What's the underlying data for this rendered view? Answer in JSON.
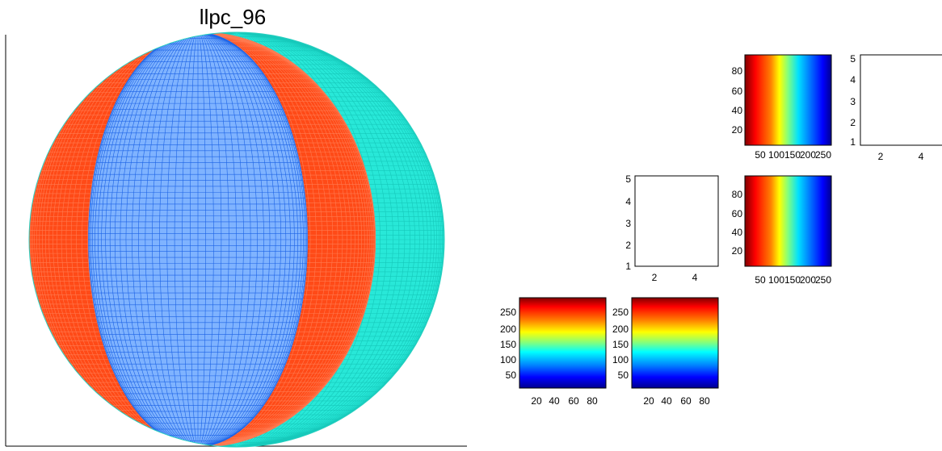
{
  "chart_data": [
    {
      "id": "main",
      "type": "surface",
      "title": "llpc_96",
      "colors": {
        "left": "#ff4a17",
        "middle": "#1c63e6",
        "right": "#28e8d8"
      }
    },
    {
      "id": "small1",
      "type": "heatmap",
      "colormap": "jet",
      "gradient": "horizontal",
      "xticks": [
        "50",
        "100",
        "150",
        "200",
        "250"
      ],
      "yticks": [
        "20",
        "40",
        "60",
        "80"
      ]
    },
    {
      "id": "small2",
      "type": "empty",
      "xticks": [
        "2",
        "4"
      ],
      "yticks": [
        "1",
        "2",
        "3",
        "4",
        "5"
      ]
    },
    {
      "id": "small3",
      "type": "empty",
      "xticks": [
        "2",
        "4"
      ],
      "yticks": [
        "1",
        "2",
        "3",
        "4",
        "5"
      ]
    },
    {
      "id": "small4",
      "type": "heatmap",
      "colormap": "jet",
      "gradient": "horizontal",
      "xticks": [
        "50",
        "100",
        "150",
        "200",
        "250"
      ],
      "yticks": [
        "20",
        "40",
        "60",
        "80"
      ]
    },
    {
      "id": "small5",
      "type": "heatmap",
      "colormap": "jet",
      "gradient": "vertical",
      "xticks": [
        "20",
        "40",
        "60",
        "80"
      ],
      "yticks": [
        "50",
        "100",
        "150",
        "200",
        "250"
      ]
    },
    {
      "id": "small6",
      "type": "heatmap",
      "colormap": "jet",
      "gradient": "vertical",
      "xticks": [
        "20",
        "40",
        "60",
        "80"
      ],
      "yticks": [
        "50",
        "100",
        "150",
        "200",
        "250"
      ]
    }
  ]
}
